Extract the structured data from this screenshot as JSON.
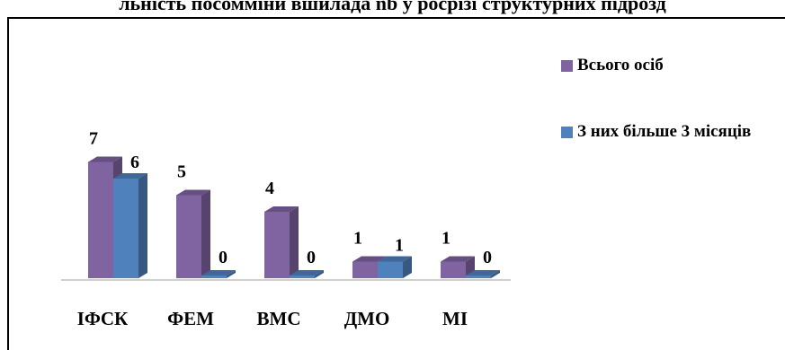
{
  "title": "льність посомміни вшилада nb y росрізі структурних підрозд",
  "chart_data": {
    "type": "bar",
    "categories": [
      "ІФСК",
      "ФЕМ",
      "ВМС",
      "ДМО",
      "МІ"
    ],
    "series": [
      {
        "name": "Всього осіб",
        "values": [
          7,
          5,
          4,
          1,
          1
        ],
        "color": "#8064a2"
      },
      {
        "name": "З них більше 3 місяців",
        "values": [
          6,
          0,
          0,
          1,
          0
        ],
        "color": "#4f81bd"
      }
    ],
    "data_labels": true,
    "bar_style": "3d",
    "ylim": [
      0,
      7
    ],
    "grid": false,
    "legend_position": "right"
  },
  "legend": {
    "items": [
      {
        "label": "Всього осіб",
        "color": "#8064a2"
      },
      {
        "label": "З них більше 3 місяців",
        "color": "#4f81bd"
      }
    ]
  }
}
